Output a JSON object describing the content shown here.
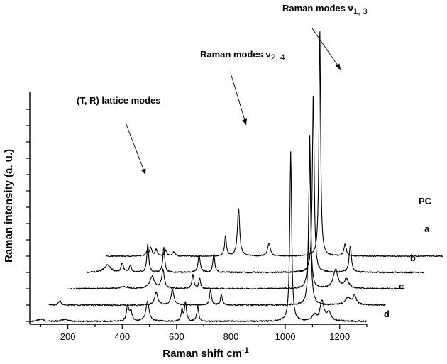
{
  "chart_data": {
    "type": "line",
    "title": "",
    "xlabel": "Raman shift cm",
    "xlabel_sup": "-1",
    "ylabel": "Raman intensity (a. u.)",
    "xlim": [
      60,
      1300
    ],
    "x_ticks": [
      200,
      400,
      600,
      800,
      1000,
      1200
    ],
    "grid": false,
    "legend": "none",
    "offsets": {
      "dx_per_series": 70,
      "dy_per_series": 23
    },
    "series": [
      {
        "name": "d",
        "x_start": 60,
        "x_end": 1300,
        "noise": 2,
        "peaks": [
          [
            100,
            3,
            12
          ],
          [
            190,
            3,
            12
          ],
          [
            420,
            22,
            5
          ],
          [
            432,
            14,
            5
          ],
          [
            493,
            28,
            7
          ],
          [
            620,
            16,
            4
          ],
          [
            633,
            27,
            4
          ],
          [
            678,
            21,
            4
          ],
          [
            1020,
            240,
            4
          ],
          [
            1107,
            8,
            10
          ],
          [
            1135,
            28,
            8
          ],
          [
            1160,
            12,
            10
          ]
        ]
      },
      {
        "name": "c",
        "x_start": 60,
        "x_end": 1300,
        "noise": 2,
        "peaks": [
          [
            100,
            6,
            6
          ],
          [
            455,
            18,
            7
          ],
          [
            515,
            22,
            6
          ],
          [
            655,
            22,
            4
          ],
          [
            695,
            15,
            4
          ],
          [
            1020,
            240,
            4
          ],
          [
            1160,
            10,
            12
          ],
          [
            1185,
            12,
            8
          ]
        ]
      },
      {
        "name": "b",
        "x_start": 60,
        "x_end": 1300,
        "noise": 2,
        "peaks": [
          [
            265,
            3,
            20
          ],
          [
            370,
            17,
            10
          ],
          [
            410,
            26,
            6
          ],
          [
            520,
            21,
            4
          ],
          [
            545,
            14,
            4
          ],
          [
            950,
            200,
            4
          ],
          [
            1045,
            27,
            10
          ],
          [
            1085,
            13,
            10
          ]
        ]
      },
      {
        "name": "a",
        "x_start": 60,
        "x_end": 1300,
        "noise": 2,
        "peaks": [
          [
            135,
            10,
            15
          ],
          [
            190,
            12,
            5
          ],
          [
            220,
            9,
            5
          ],
          [
            284,
            40,
            4
          ],
          [
            343,
            36,
            4
          ],
          [
            473,
            24,
            5
          ],
          [
            527,
            26,
            4
          ],
          [
            893,
            252,
            4
          ],
          [
            1029,
            38,
            5
          ]
        ]
      },
      {
        "name": "PC",
        "x_start": 60,
        "x_end": 1300,
        "noise": 1.5,
        "peaks": [
          [
            210,
            5,
            5
          ],
          [
            225,
            11,
            5
          ],
          [
            245,
            9,
            5
          ],
          [
            280,
            8,
            5
          ],
          [
            310,
            6,
            5
          ],
          [
            500,
            28,
            4
          ],
          [
            548,
            68,
            5
          ],
          [
            660,
            18,
            6
          ],
          [
            847,
            323,
            3.5
          ],
          [
            940,
            17,
            5
          ]
        ]
      }
    ],
    "annotations": [
      {
        "text": "(T, R) lattice modes",
        "sub": ""
      },
      {
        "text": "Raman modes ν",
        "sub": "2, 4"
      },
      {
        "text": "Raman modes ν",
        "sub": "1, 3"
      }
    ]
  }
}
